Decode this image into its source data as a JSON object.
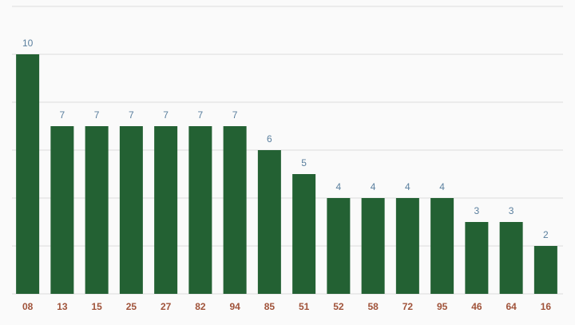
{
  "chart_data": {
    "type": "bar",
    "categories": [
      "08",
      "13",
      "15",
      "25",
      "27",
      "82",
      "94",
      "85",
      "51",
      "52",
      "58",
      "72",
      "95",
      "46",
      "64",
      "16"
    ],
    "values": [
      10,
      7,
      7,
      7,
      7,
      7,
      7,
      6,
      5,
      4,
      4,
      4,
      4,
      3,
      3,
      2
    ],
    "color": "#236133",
    "ylim": [
      0,
      12
    ],
    "yticks": [
      0,
      2,
      4,
      6,
      8,
      10,
      12
    ],
    "grid": true
  }
}
